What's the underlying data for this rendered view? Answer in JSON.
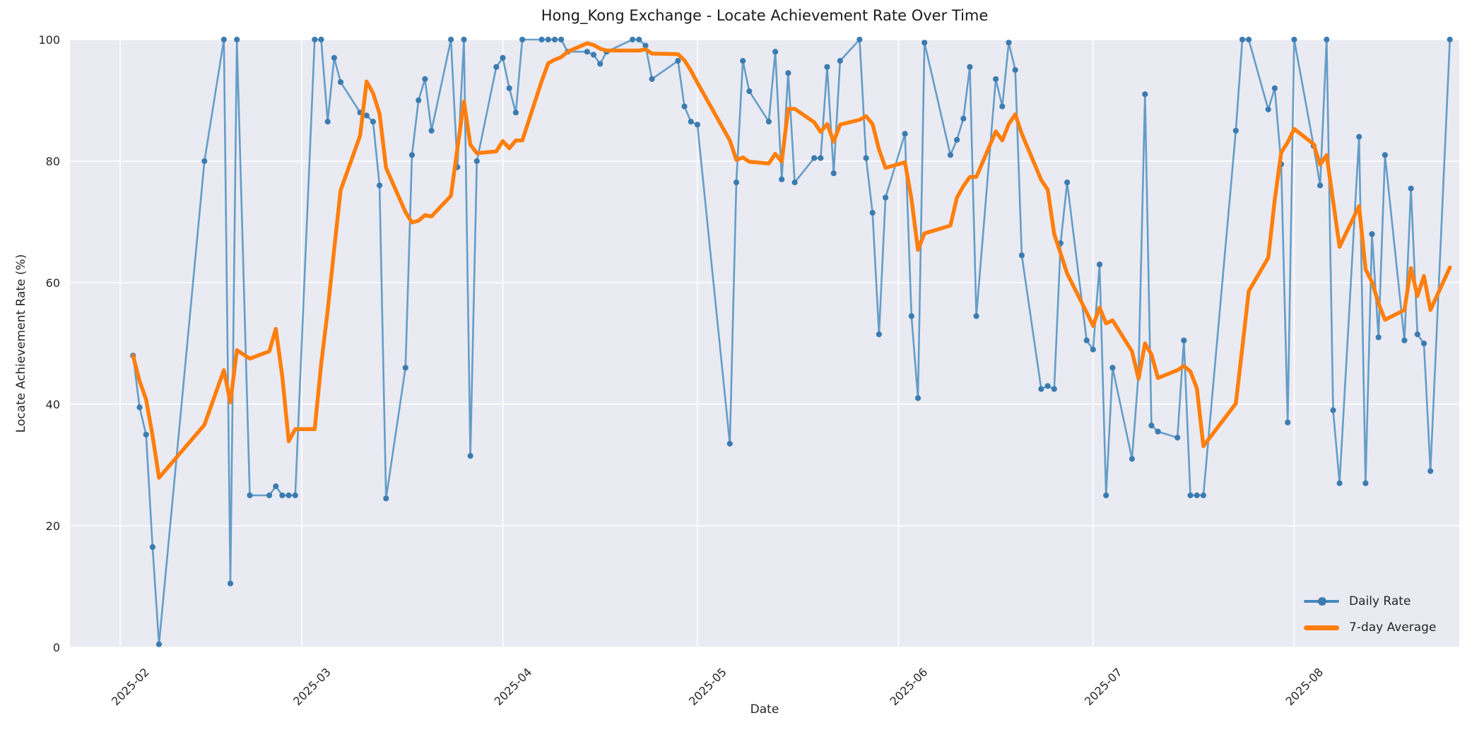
{
  "chart_data": {
    "type": "line",
    "title": "Hong_Kong Exchange - Locate Achievement Rate Over Time",
    "xlabel": "Date",
    "ylabel": "Locate Achievement Rate (%)",
    "plot_bg_color": "#eaeaf2",
    "grid_color": "#ffffff",
    "grid": true,
    "legend_position": "lower right",
    "ylim": [
      0,
      100
    ],
    "xlim_days": [
      -7.73,
      206.45
    ],
    "x_unit": "days since 2025-02-01",
    "y_ticks": [
      0,
      20,
      40,
      60,
      80,
      100
    ],
    "x_ticks": [
      {
        "label": "2025-02",
        "day": 0
      },
      {
        "label": "2025-03",
        "day": 28
      },
      {
        "label": "2025-04",
        "day": 59
      },
      {
        "label": "2025-05",
        "day": 89
      },
      {
        "label": "2025-06",
        "day": 120
      },
      {
        "label": "2025-07",
        "day": 150
      },
      {
        "label": "2025-08",
        "day": 181
      }
    ],
    "dates": [
      "2025-02-03",
      "2025-02-04",
      "2025-02-05",
      "2025-02-06",
      "2025-02-07",
      "2025-02-14",
      "2025-02-17",
      "2025-02-18",
      "2025-02-19",
      "2025-02-21",
      "2025-02-24",
      "2025-02-25",
      "2025-02-26",
      "2025-02-27",
      "2025-02-28",
      "2025-03-03",
      "2025-03-04",
      "2025-03-05",
      "2025-03-06",
      "2025-03-07",
      "2025-03-10",
      "2025-03-11",
      "2025-03-12",
      "2025-03-13",
      "2025-03-14",
      "2025-03-17",
      "2025-03-18",
      "2025-03-19",
      "2025-03-20",
      "2025-03-21",
      "2025-03-24",
      "2025-03-25",
      "2025-03-26",
      "2025-03-27",
      "2025-03-28",
      "2025-03-31",
      "2025-04-01",
      "2025-04-02",
      "2025-04-03",
      "2025-04-04",
      "2025-04-07",
      "2025-04-08",
      "2025-04-09",
      "2025-04-10",
      "2025-04-11",
      "2025-04-14",
      "2025-04-15",
      "2025-04-16",
      "2025-04-17",
      "2025-04-21",
      "2025-04-22",
      "2025-04-23",
      "2025-04-24",
      "2025-04-28",
      "2025-04-29",
      "2025-04-30",
      "2025-05-01",
      "2025-05-06",
      "2025-05-07",
      "2025-05-08",
      "2025-05-09",
      "2025-05-12",
      "2025-05-13",
      "2025-05-14",
      "2025-05-15",
      "2025-05-16",
      "2025-05-19",
      "2025-05-20",
      "2025-05-21",
      "2025-05-22",
      "2025-05-23",
      "2025-05-26",
      "2025-05-27",
      "2025-05-28",
      "2025-05-29",
      "2025-05-30",
      "2025-06-02",
      "2025-06-03",
      "2025-06-04",
      "2025-06-05",
      "2025-06-09",
      "2025-06-10",
      "2025-06-11",
      "2025-06-12",
      "2025-06-13",
      "2025-06-16",
      "2025-06-17",
      "2025-06-18",
      "2025-06-19",
      "2025-06-20",
      "2025-06-23",
      "2025-06-24",
      "2025-06-25",
      "2025-06-26",
      "2025-06-27",
      "2025-06-30",
      "2025-07-01",
      "2025-07-02",
      "2025-07-03",
      "2025-07-04",
      "2025-07-07",
      "2025-07-08",
      "2025-07-09",
      "2025-07-10",
      "2025-07-11",
      "2025-07-14",
      "2025-07-15",
      "2025-07-16",
      "2025-07-17",
      "2025-07-18",
      "2025-07-23",
      "2025-07-24",
      "2025-07-25",
      "2025-07-28",
      "2025-07-29",
      "2025-07-30",
      "2025-07-31",
      "2025-08-01",
      "2025-08-04",
      "2025-08-05",
      "2025-08-06",
      "2025-08-07",
      "2025-08-08",
      "2025-08-11",
      "2025-08-12",
      "2025-08-13",
      "2025-08-14",
      "2025-08-15",
      "2025-08-18",
      "2025-08-19",
      "2025-08-20",
      "2025-08-21",
      "2025-08-22",
      "2025-08-25"
    ],
    "days": [
      2,
      3,
      4,
      5,
      6,
      13,
      16,
      17,
      18,
      20,
      23,
      24,
      25,
      26,
      27,
      30,
      31,
      32,
      33,
      34,
      37,
      38,
      39,
      40,
      41,
      44,
      45,
      46,
      47,
      48,
      51,
      52,
      53,
      54,
      55,
      58,
      59,
      60,
      61,
      62,
      65,
      66,
      67,
      68,
      69,
      72,
      73,
      74,
      75,
      79,
      80,
      81,
      82,
      86,
      87,
      88,
      89,
      94,
      95,
      96,
      97,
      100,
      101,
      102,
      103,
      104,
      107,
      108,
      109,
      110,
      111,
      114,
      115,
      116,
      117,
      118,
      121,
      122,
      123,
      124,
      128,
      129,
      130,
      131,
      132,
      135,
      136,
      137,
      138,
      139,
      142,
      143,
      144,
      145,
      146,
      149,
      150,
      151,
      152,
      153,
      156,
      157,
      158,
      159,
      160,
      163,
      164,
      165,
      166,
      167,
      172,
      173,
      174,
      177,
      178,
      179,
      180,
      181,
      184,
      185,
      186,
      187,
      188,
      191,
      192,
      193,
      194,
      195,
      198,
      199,
      200,
      201,
      202,
      205
    ],
    "series": [
      {
        "name": "Daily Rate",
        "color": "#4489bd",
        "marker": "o",
        "values": [
          48,
          39.5,
          35,
          16.5,
          0.5,
          80,
          100,
          10.5,
          100,
          25,
          25,
          26.5,
          25,
          25,
          25,
          100,
          100,
          86.5,
          97,
          93,
          88,
          87.5,
          86.5,
          76,
          24.5,
          46,
          81,
          90,
          93.5,
          85,
          100,
          79,
          100,
          31.5,
          80,
          95.5,
          97,
          92,
          88,
          100,
          100,
          100,
          100,
          100,
          98,
          98,
          97.5,
          96,
          98,
          100,
          100,
          99,
          93.5,
          96.5,
          89,
          86.5,
          86,
          33.5,
          76.5,
          96.5,
          91.5,
          86.5,
          98,
          77,
          94.5,
          76.5,
          80.5,
          80.5,
          95.5,
          78,
          96.5,
          100,
          80.5,
          71.5,
          51.5,
          74,
          84.5,
          54.5,
          41,
          99.5,
          81,
          83.5,
          87,
          95.5,
          54.5,
          93.5,
          89,
          99.5,
          95,
          64.5,
          42.5,
          43,
          42.5,
          66.5,
          76.5,
          50.5,
          49,
          63,
          25,
          46,
          31,
          45,
          91,
          36.5,
          35.5,
          34.5,
          50.5,
          25,
          25,
          25,
          85,
          100,
          100,
          88.5,
          92,
          79.5,
          37,
          100,
          82.5,
          76,
          100,
          39,
          27,
          84,
          27,
          68,
          51,
          81,
          50.5,
          75.5,
          51.5,
          50,
          29,
          100
        ]
      },
      {
        "name": "7-day Average",
        "color": "#ff7f0e",
        "marker": "none",
        "values": [
          48,
          43.8,
          40.8,
          34.8,
          27.9,
          36.6,
          45.6,
          40.3,
          48.9,
          47.5,
          48.7,
          52.4,
          44.6,
          33.9,
          35.9,
          35.9,
          46.6,
          55.4,
          65.5,
          75.2,
          84.2,
          93.1,
          91.2,
          87.8,
          78.9,
          71.6,
          69.9,
          70.2,
          71.1,
          70.9,
          74.3,
          82.1,
          89.8,
          82.7,
          81.3,
          81.6,
          83.3,
          82.1,
          83.4,
          83.4,
          93.2,
          96.1,
          96.7,
          97.1,
          98,
          99.4,
          99.1,
          98.5,
          98.2,
          98.2,
          98.2,
          98.4,
          97.7,
          97.6,
          96.6,
          94.9,
          92.9,
          83.4,
          80.2,
          80.6,
          79.9,
          79.6,
          81.2,
          79.9,
          88.6,
          88.6,
          86.4,
          84.8,
          86.1,
          83.2,
          86,
          86.8,
          87.4,
          86.1,
          81.9,
          78.9,
          79.8,
          73.8,
          65.4,
          68.1,
          69.4,
          74,
          75.9,
          77.4,
          77.4,
          84.9,
          83.4,
          86.1,
          87.7,
          84.5,
          76.9,
          75.3,
          68,
          64.8,
          61.5,
          55.1,
          52.9,
          55.9,
          53.3,
          53.8,
          48.7,
          44.2,
          50,
          48.2,
          44.3,
          45.6,
          46.3,
          45.4,
          42.6,
          33.1,
          40.1,
          49.3,
          58.6,
          64.1,
          73.6,
          81.4,
          83.1,
          85.3,
          82.8,
          79.4,
          81,
          73.4,
          65.9,
          72.6,
          62.2,
          60.1,
          56.6,
          53.9,
          55.5,
          62.4,
          57.8,
          61.1,
          55.5,
          62.5
        ]
      }
    ]
  }
}
